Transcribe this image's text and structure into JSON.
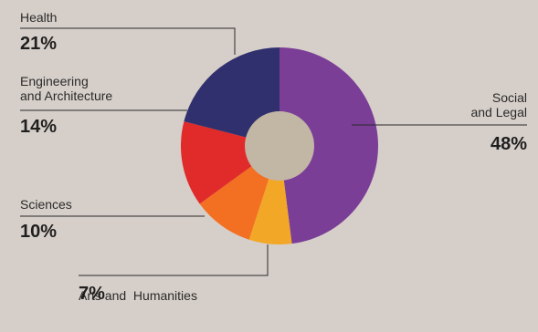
{
  "chart_data": {
    "type": "pie",
    "donut": true,
    "title": "",
    "slices": [
      {
        "label": "Social and Legal",
        "label_lines": [
          "Social",
          "and Legal"
        ],
        "value": 48,
        "value_text": "48%",
        "color": "#7b3e97"
      },
      {
        "label": "Arts and Humanities",
        "label_lines": [
          "Arts and  Humanities"
        ],
        "value": 7,
        "value_text": "7%",
        "color": "#f2a726"
      },
      {
        "label": "Sciences",
        "label_lines": [
          "Sciences"
        ],
        "value": 10,
        "value_text": "10%",
        "color": "#f36f22"
      },
      {
        "label": "Engineering and Architecture",
        "label_lines": [
          "Engineering",
          "and Architecture"
        ],
        "value": 14,
        "value_text": "14%",
        "color": "#e12a2a"
      },
      {
        "label": "Health",
        "label_lines": [
          "Health"
        ],
        "value": 21,
        "value_text": "21%",
        "color": "#2f306d"
      }
    ],
    "hole_color": "#c2b6a5",
    "start_angle": "top",
    "direction": "clockwise"
  }
}
